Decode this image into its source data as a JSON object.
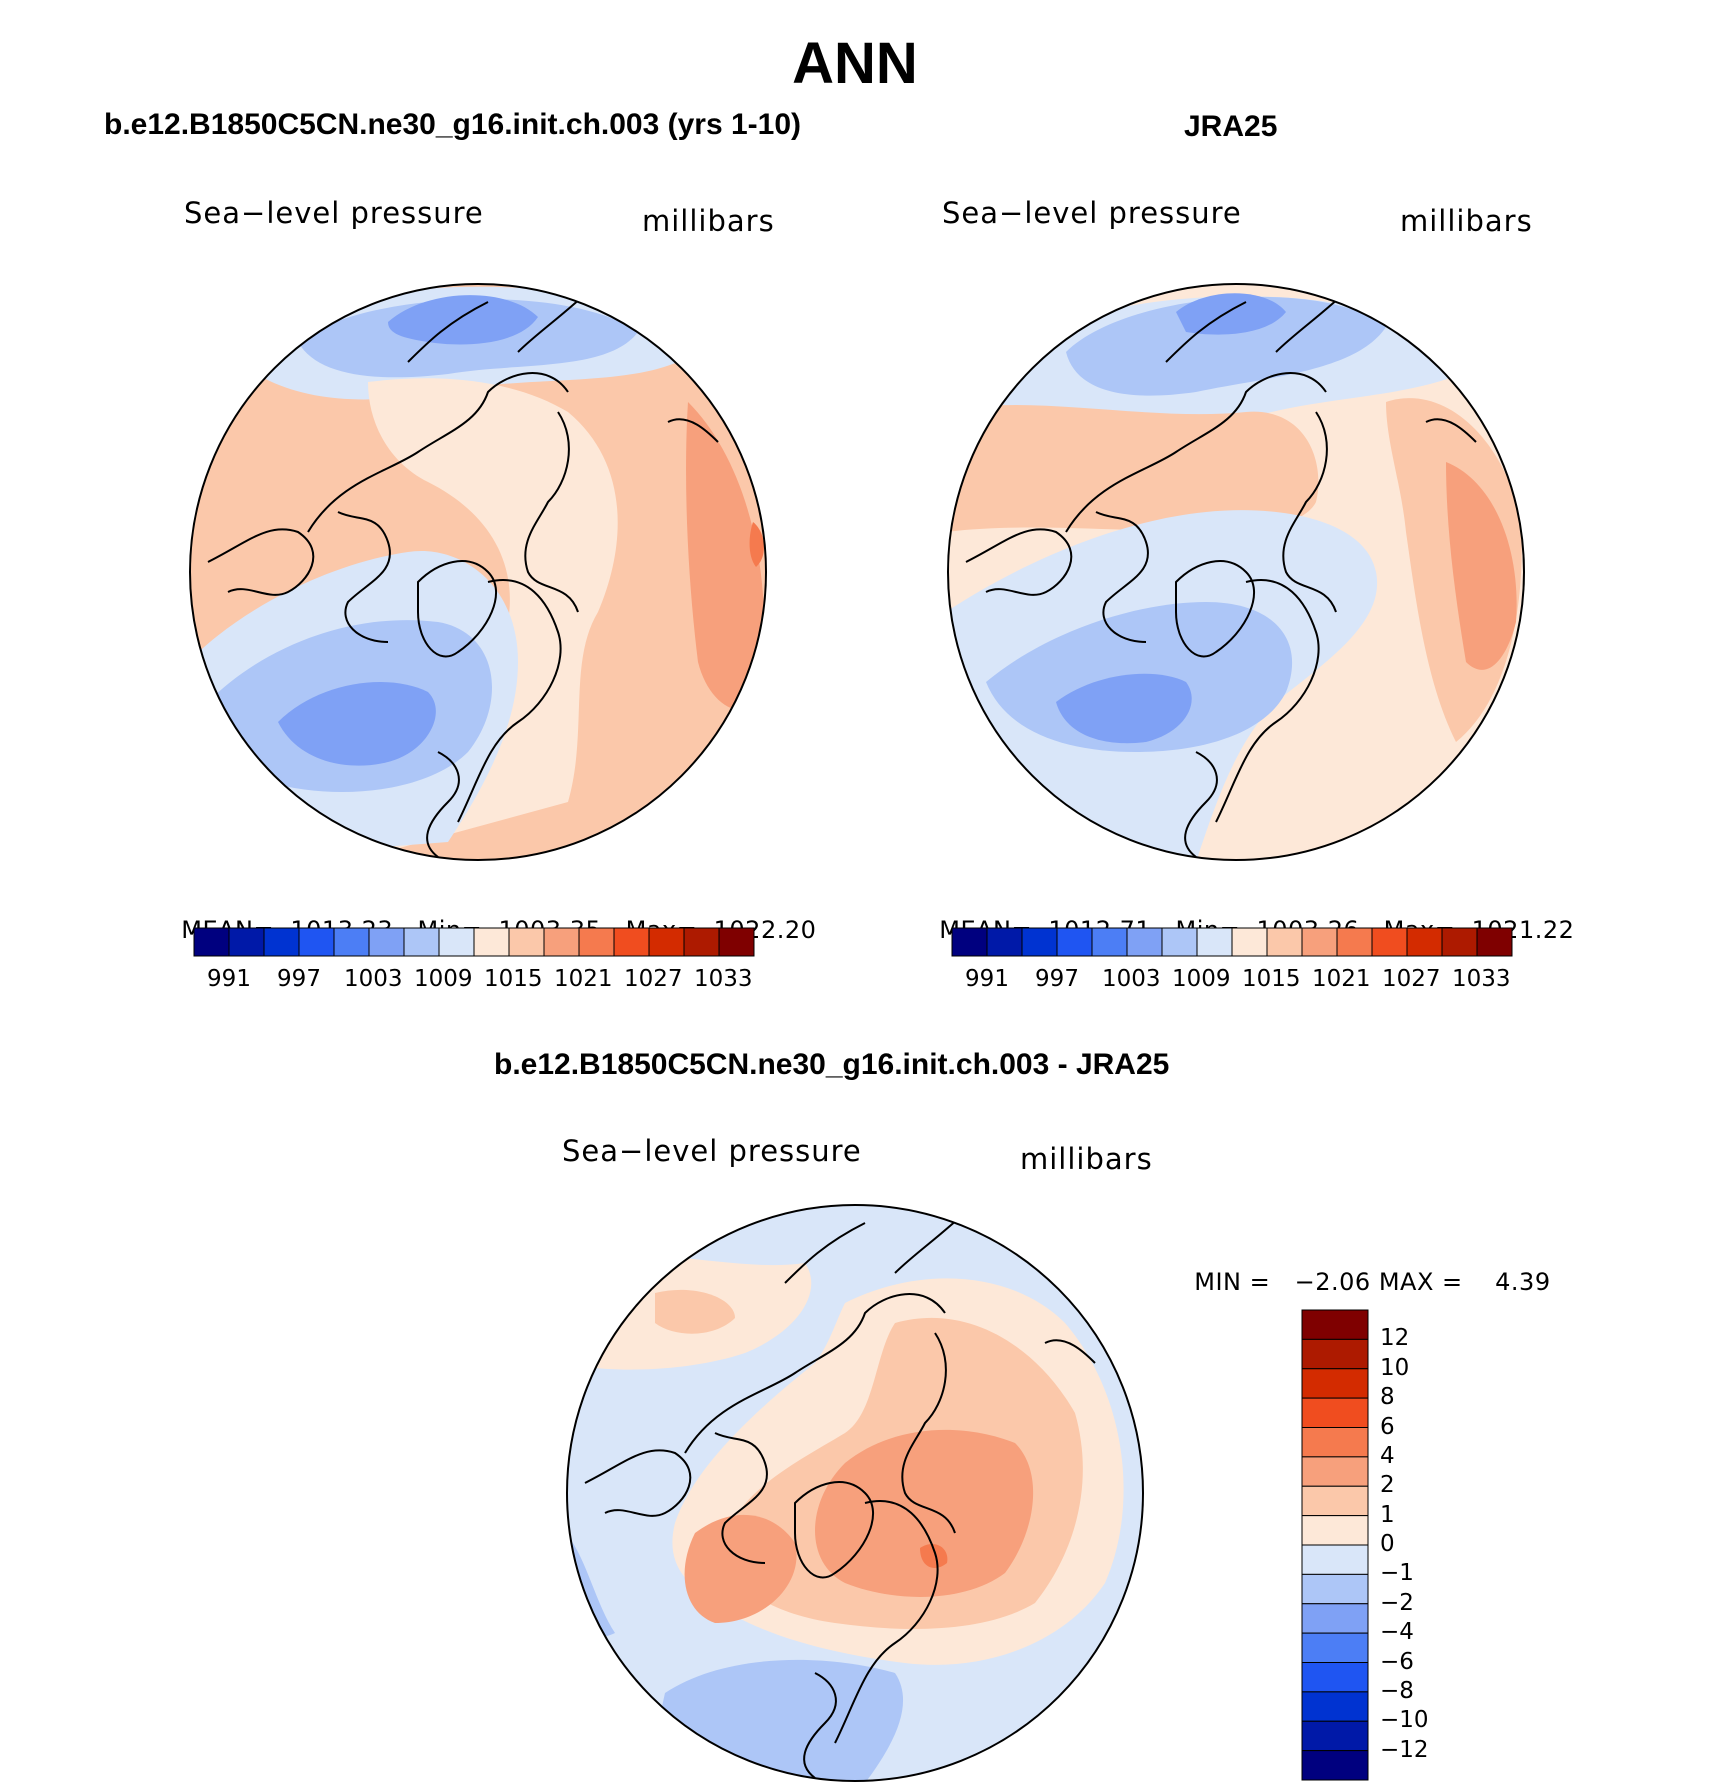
{
  "figure": {
    "title": "ANN",
    "colors": {
      "abs_scale": [
        "#00007f",
        "#0019a8",
        "#0033d1",
        "#1f55f2",
        "#4c7ef5",
        "#7fa1f5",
        "#adc6f7",
        "#d9e6f9",
        "#fde8d8",
        "#fbc8aa",
        "#f7a07c",
        "#f57a4e",
        "#f04d1f",
        "#d32b00",
        "#ad1a00",
        "#7f0000"
      ],
      "diff_scale": [
        "#00007f",
        "#0019a8",
        "#0033d1",
        "#1f55f2",
        "#4c7ef5",
        "#7fa1f5",
        "#adc6f7",
        "#d9e6f9",
        "#fde8d8",
        "#fbc8aa",
        "#f7a07c",
        "#f57a4e",
        "#f04d1f",
        "#d32b00",
        "#ad1a00",
        "#7f0000"
      ],
      "coastline": "#000000"
    }
  },
  "panels": [
    {
      "title": "b.e12.B1850C5CN.ne30_g16.init.ch.003 (yrs 1-10)",
      "variable": "Sea−level pressure",
      "units": "millibars",
      "stats_mean_label": "MEAN=",
      "stats_mean": "1013.23",
      "stats_min_label": "Min=",
      "stats_min": "1003.35",
      "stats_max_label": "Max=",
      "stats_max": "1022.20",
      "colorbar_labels": [
        "991",
        "997",
        "1003",
        "1009",
        "1015",
        "1021",
        "1027",
        "1033"
      ]
    },
    {
      "title": "JRA25",
      "variable": "Sea−level pressure",
      "units": "millibars",
      "stats_mean_label": "MEAN=",
      "stats_mean": "1012.71",
      "stats_min_label": "Min=",
      "stats_min": "1003.26",
      "stats_max_label": "Max=",
      "stats_max": "1021.22",
      "colorbar_labels": [
        "991",
        "997",
        "1003",
        "1009",
        "1015",
        "1021",
        "1027",
        "1033"
      ]
    },
    {
      "title": "b.e12.B1850C5CN.ne30_g16.init.ch.003 - JRA25",
      "variable": "Sea−level pressure",
      "units": "millibars",
      "stats_min_label": "MIN =",
      "stats_min": "−2.06",
      "stats_max_label": "MAX =",
      "stats_max": "4.39",
      "colorbar_labels": [
        "12",
        "10",
        "8",
        "6",
        "4",
        "2",
        "1",
        "0",
        "−1",
        "−2",
        "−4",
        "−6",
        "−8",
        "−10",
        "−12"
      ]
    }
  ]
}
